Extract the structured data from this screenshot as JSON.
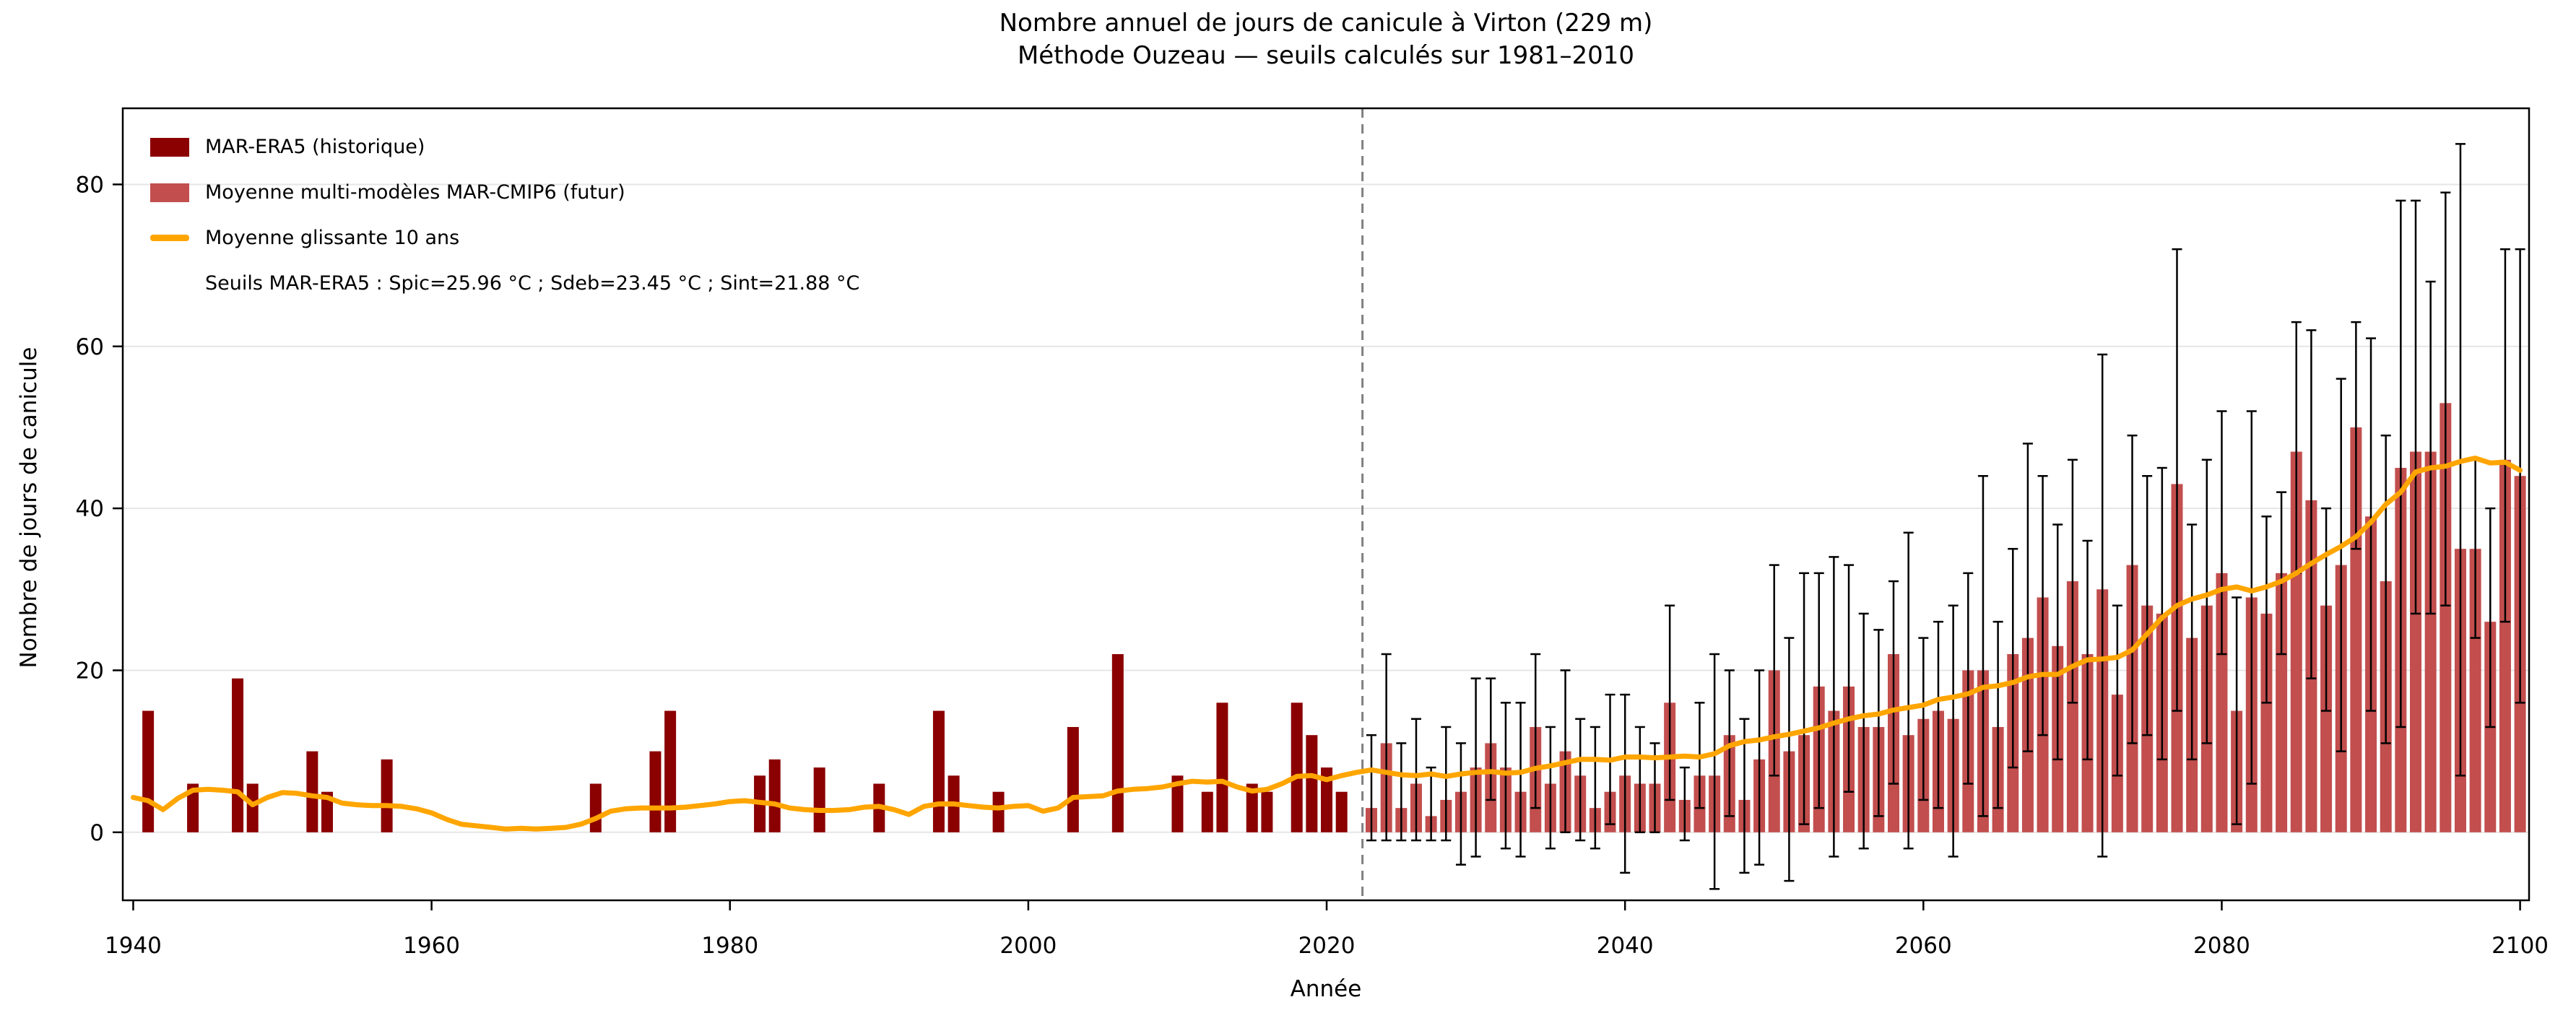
{
  "title": {
    "line1": "Nombre annuel de jours de canicule à Virton (229 m)",
    "line2": "Méthode Ouzeau — seuils calculés sur 1981–2010"
  },
  "axes": {
    "y_label": "Nombre de jours de canicule",
    "x_label": "Année",
    "y_ticks": [
      0,
      20,
      40,
      60,
      80
    ],
    "x_ticks": [
      1940,
      1960,
      1980,
      2000,
      2020,
      2040,
      2060,
      2080,
      2100
    ]
  },
  "legend": {
    "items": [
      {
        "label": "MAR-ERA5 (historique)",
        "swatch": "dark-red-rect"
      },
      {
        "label": "Moyenne multi-modèles MAR-CMIP6 (futur)",
        "swatch": "light-red-rect"
      },
      {
        "label": "Moyenne glissante 10 ans",
        "swatch": "orange-line"
      }
    ],
    "threshold_text": "Seuils MAR-ERA5 : Spic=25.96 °C ; Sdeb=23.45 °C ; Sint=21.88 °C"
  },
  "colors": {
    "historical": "#8B0000",
    "future": "#C24E4E",
    "rolling_mean": "#FFA500",
    "error_bar": "#000000",
    "divider": "#808080",
    "grid": "#E6E6E6",
    "frame": "#000000"
  },
  "chart_data": {
    "type": "bar",
    "title": "Nombre annuel de jours de canicule à Virton (229 m)",
    "subtitle": "Méthode Ouzeau — seuils calculés sur 1981–2010",
    "xlabel": "Année",
    "ylabel": "Nombre de jours de canicule",
    "xlim": [
      1939.3,
      2100.6
    ],
    "ylim": [
      -8.4,
      89.4
    ],
    "grid": "horizontal",
    "legend_position": "upper-left",
    "divider_year": 2022.4,
    "historical": {
      "name": "MAR-ERA5 (historique)",
      "years_start": 1940,
      "values": [
        0,
        15,
        0,
        0,
        6,
        0,
        0,
        19,
        6,
        0,
        0,
        0,
        10,
        5,
        0,
        0,
        0,
        9,
        0,
        0,
        0,
        0,
        0,
        0,
        0,
        0,
        0,
        0,
        0,
        0,
        0,
        6,
        0,
        0,
        0,
        10,
        15,
        0,
        0,
        0,
        0,
        0,
        7,
        9,
        0,
        0,
        8,
        0,
        0,
        0,
        6,
        0,
        0,
        0,
        15,
        7,
        0,
        0,
        5,
        0,
        0,
        0,
        0,
        13,
        0,
        0,
        22,
        0,
        0,
        0,
        7,
        0,
        5,
        16,
        0,
        6,
        5,
        0,
        16,
        12,
        8,
        5,
        0
      ]
    },
    "future": {
      "name": "Moyenne multi-modèles MAR-CMIP6 (futur)",
      "years_start": 2023,
      "values": [
        3,
        11,
        3,
        6,
        2,
        4,
        5,
        8,
        11,
        8,
        5,
        13,
        6,
        10,
        7,
        3,
        5,
        7,
        6,
        6,
        16,
        4,
        7,
        7,
        12,
        4,
        9,
        20,
        10,
        12,
        18,
        15,
        18,
        13,
        13,
        22,
        12,
        14,
        15,
        14,
        20,
        20,
        13,
        22,
        24,
        29,
        23,
        31,
        22,
        30,
        17,
        33,
        28,
        27,
        43,
        24,
        28,
        32,
        15,
        29,
        27,
        32,
        47,
        41,
        28,
        33,
        50,
        39,
        31,
        45,
        47,
        47,
        53,
        35,
        35,
        26,
        46,
        44
      ],
      "err_low": [
        -1,
        -1,
        -1,
        -1,
        -1,
        -1,
        -4,
        -3,
        4,
        -2,
        -3,
        3,
        -2,
        0,
        -1,
        -2,
        1,
        -5,
        0,
        0,
        4,
        -1,
        3,
        -7,
        2,
        -5,
        -4,
        7,
        -6,
        1,
        3,
        -3,
        5,
        -2,
        2,
        6,
        -2,
        4,
        3,
        -3,
        6,
        2,
        3,
        8,
        10,
        12,
        9,
        16,
        9,
        -3,
        7,
        11,
        12,
        9,
        15,
        9,
        11,
        22,
        1,
        6,
        16,
        22,
        32,
        19,
        15,
        10,
        35,
        15,
        11,
        13,
        27,
        27,
        28,
        7,
        24,
        13,
        26,
        16
      ],
      "err_high": [
        12,
        22,
        11,
        14,
        8,
        13,
        11,
        19,
        19,
        16,
        16,
        22,
        13,
        20,
        14,
        13,
        17,
        17,
        13,
        11,
        28,
        8,
        16,
        22,
        20,
        14,
        20,
        33,
        24,
        32,
        32,
        34,
        33,
        27,
        25,
        31,
        37,
        24,
        26,
        28,
        32,
        44,
        26,
        35,
        48,
        44,
        38,
        46,
        36,
        59,
        28,
        49,
        44,
        45,
        72,
        38,
        46,
        52,
        29,
        52,
        39,
        42,
        63,
        62,
        40,
        56,
        63,
        61,
        49,
        78,
        78,
        68,
        79,
        85,
        46,
        40,
        72,
        72
      ]
    },
    "rolling_mean": {
      "name": "Moyenne glissante 10 ans",
      "years_start": 1940,
      "values": [
        4.3,
        3.9,
        2.8,
        4.2,
        5.2,
        5.3,
        5.2,
        5.0,
        3.4,
        4.3,
        4.9,
        4.8,
        4.5,
        4.3,
        3.6,
        3.4,
        3.3,
        3.3,
        3.2,
        2.9,
        2.4,
        1.6,
        1.0,
        0.8,
        0.6,
        0.4,
        0.5,
        0.4,
        0.5,
        0.6,
        1.0,
        1.7,
        2.6,
        2.9,
        3.0,
        3.0,
        3.0,
        3.1,
        3.3,
        3.5,
        3.8,
        3.9,
        3.7,
        3.5,
        3.0,
        2.8,
        2.7,
        2.7,
        2.8,
        3.1,
        3.2,
        2.8,
        2.2,
        3.2,
        3.5,
        3.5,
        3.3,
        3.1,
        3.0,
        3.2,
        3.3,
        2.6,
        3.0,
        4.3,
        4.4,
        4.5,
        5.1,
        5.3,
        5.4,
        5.6,
        6.0,
        6.3,
        6.2,
        6.3,
        5.6,
        5.1,
        5.3,
        6.0,
        6.9,
        7.0,
        6.5,
        7.0,
        7.4,
        7.7,
        7.4,
        7.1,
        7.0,
        7.2,
        6.9,
        7.2,
        7.4,
        7.5,
        7.3,
        7.4,
        7.9,
        8.2,
        8.6,
        9.0,
        9.0,
        8.9,
        9.3,
        9.3,
        9.2,
        9.3,
        9.4,
        9.3,
        9.7,
        10.7,
        11.2,
        11.4,
        11.8,
        12.1,
        12.5,
        12.9,
        13.5,
        14.0,
        14.4,
        14.6,
        15.1,
        15.4,
        15.7,
        16.4,
        16.7,
        17.1,
        17.9,
        18.1,
        18.5,
        19.2,
        19.5,
        19.5,
        20.5,
        21.3,
        21.4,
        21.6,
        22.5,
        24.5,
        26.5,
        28.0,
        28.8,
        29.3,
        30.0,
        30.3,
        29.8,
        30.3,
        31.0,
        32.0,
        33.2,
        34.3,
        35.3,
        36.5,
        38.3,
        40.5,
        42.0,
        44.5,
        45.0,
        45.2,
        45.8,
        46.2,
        45.6,
        45.7,
        44.7
      ]
    }
  }
}
